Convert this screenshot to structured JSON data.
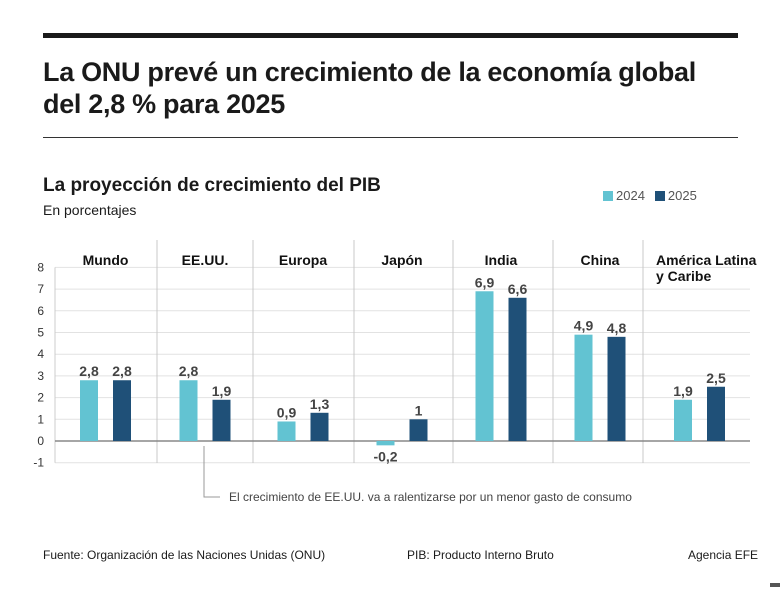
{
  "header": {
    "title": "La ONU prevé un crecimiento de la economía global del 2,8 % para 2025",
    "subtitle": "La proyección de crecimiento del PIB",
    "units": "En porcentajes"
  },
  "chart_data": {
    "type": "bar",
    "title": "La proyección de crecimiento del PIB",
    "ylabel": "En porcentajes",
    "categories": [
      "Mundo",
      "EE.UU.",
      "Europa",
      "Japón",
      "India",
      "China",
      "América Latina y Caribe"
    ],
    "category_lines": [
      [
        "Mundo"
      ],
      [
        "EE.UU."
      ],
      [
        "Europa"
      ],
      [
        "Japón"
      ],
      [
        "India"
      ],
      [
        "China"
      ],
      [
        "América Latina",
        "y Caribe"
      ]
    ],
    "series": [
      {
        "name": "2024",
        "color": "#62c3d2",
        "values": [
          2.8,
          2.8,
          0.9,
          -0.2,
          6.9,
          4.9,
          1.9
        ],
        "labels": [
          "2,8",
          "2,8",
          "0,9",
          "-0,2",
          "6,9",
          "4,9",
          "1,9"
        ]
      },
      {
        "name": "2025",
        "color": "#1f5078",
        "values": [
          2.8,
          1.9,
          1.3,
          1,
          6.6,
          4.8,
          2.5
        ],
        "labels": [
          "2,8",
          "1,9",
          "1,3",
          "1",
          "6,6",
          "4,8",
          "2,5"
        ]
      }
    ],
    "ylim": [
      -1,
      8
    ],
    "yticks": [
      -1,
      0,
      1,
      2,
      3,
      4,
      5,
      6,
      7,
      8
    ],
    "grid": true,
    "legend": "top-right",
    "annotation": "El crecimiento de EE.UU. va a ralentizarse por un menor gasto de consumo"
  },
  "footer": {
    "source": "Fuente: Organización de las Naciones Unidas (ONU)",
    "note": "PIB: Producto Interno Bruto",
    "agency": "Agencia EFE"
  }
}
